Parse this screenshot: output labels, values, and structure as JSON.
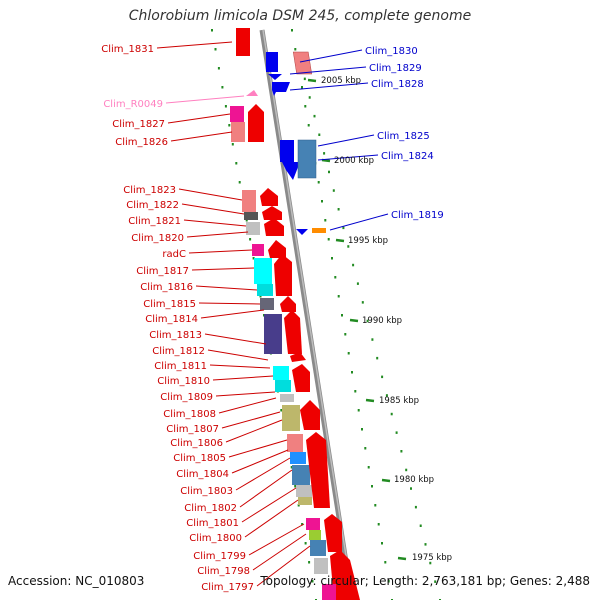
{
  "title": "Chlorobium limicola DSM 245, complete genome",
  "accession_text": "Accession: NC_010803",
  "topology_text": "Topology: circular; Length: 2,763,181 bp; Genes: 2,488",
  "colors": {
    "forward_label": "#cc0000",
    "reverse_label": "#0000cc",
    "rna_label": "#ff80c0",
    "backbone": "#888888",
    "tick": "#228b22"
  },
  "reverse_genes": [
    {
      "name": "Clim_1830",
      "type": "cds"
    },
    {
      "name": "Clim_1829",
      "type": "cds"
    },
    {
      "name": "Clim_1828",
      "type": "cds"
    },
    {
      "name": "Clim_1825",
      "type": "cds"
    },
    {
      "name": "Clim_1824",
      "type": "cds"
    },
    {
      "name": "Clim_1819",
      "type": "cds"
    }
  ],
  "forward_genes": [
    {
      "name": "Clim_1831",
      "type": "cds"
    },
    {
      "name": "Clim_R0049",
      "type": "rna"
    },
    {
      "name": "Clim_1827",
      "type": "cds"
    },
    {
      "name": "Clim_1826",
      "type": "cds"
    },
    {
      "name": "Clim_1823",
      "type": "cds"
    },
    {
      "name": "Clim_1822",
      "type": "cds"
    },
    {
      "name": "Clim_1821",
      "type": "cds"
    },
    {
      "name": "Clim_1820",
      "type": "cds"
    },
    {
      "name": "radC",
      "type": "cds"
    },
    {
      "name": "Clim_1817",
      "type": "cds"
    },
    {
      "name": "Clim_1816",
      "type": "cds"
    },
    {
      "name": "Clim_1815",
      "type": "cds"
    },
    {
      "name": "Clim_1814",
      "type": "cds"
    },
    {
      "name": "Clim_1813",
      "type": "cds"
    },
    {
      "name": "Clim_1812",
      "type": "cds"
    },
    {
      "name": "Clim_1811",
      "type": "cds"
    },
    {
      "name": "Clim_1810",
      "type": "cds"
    },
    {
      "name": "Clim_1809",
      "type": "cds"
    },
    {
      "name": "Clim_1808",
      "type": "cds"
    },
    {
      "name": "Clim_1807",
      "type": "cds"
    },
    {
      "name": "Clim_1806",
      "type": "cds"
    },
    {
      "name": "Clim_1805",
      "type": "cds"
    },
    {
      "name": "Clim_1804",
      "type": "cds"
    },
    {
      "name": "Clim_1803",
      "type": "cds"
    },
    {
      "name": "Clim_1802",
      "type": "cds"
    },
    {
      "name": "Clim_1801",
      "type": "cds"
    },
    {
      "name": "Clim_1800",
      "type": "cds"
    },
    {
      "name": "Clim_1799",
      "type": "cds"
    },
    {
      "name": "Clim_1798",
      "type": "cds"
    },
    {
      "name": "Clim_1797",
      "type": "cds"
    }
  ],
  "kbp_labels": [
    "2005 kbp",
    "2000 kbp",
    "1995 kbp",
    "1990 kbp",
    "1985 kbp",
    "1980 kbp",
    "1975 kbp"
  ]
}
